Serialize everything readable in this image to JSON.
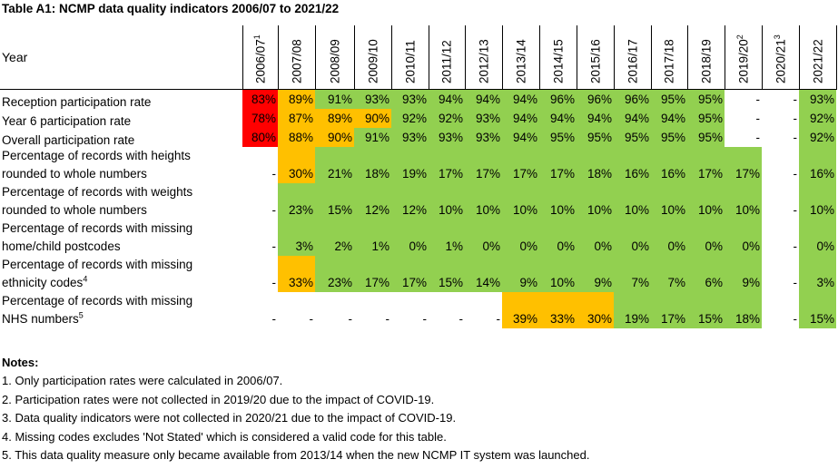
{
  "title": "Table A1: NCMP data quality indicators 2006/07 to 2021/22",
  "year_header": "Year",
  "years": [
    {
      "label": "2006/07",
      "sup": "1"
    },
    {
      "label": "2007/08",
      "sup": ""
    },
    {
      "label": "2008/09",
      "sup": ""
    },
    {
      "label": "2009/10",
      "sup": ""
    },
    {
      "label": "2010/11",
      "sup": ""
    },
    {
      "label": "2011/12",
      "sup": ""
    },
    {
      "label": "2012/13",
      "sup": ""
    },
    {
      "label": "2013/14",
      "sup": ""
    },
    {
      "label": "2014/15",
      "sup": ""
    },
    {
      "label": "2015/16",
      "sup": ""
    },
    {
      "label": "2016/17",
      "sup": ""
    },
    {
      "label": "2017/18",
      "sup": ""
    },
    {
      "label": "2018/19",
      "sup": ""
    },
    {
      "label": "2019/20",
      "sup": "2"
    },
    {
      "label": "2020/21",
      "sup": "3"
    },
    {
      "label": "2021/22",
      "sup": ""
    }
  ],
  "colors": {
    "red": "#ff0000",
    "amber": "#ffc000",
    "green": "#92d050"
  },
  "rows": [
    {
      "lines": [
        "Reception participation rate"
      ],
      "sup": "",
      "values": [
        "83%",
        "89%",
        "91%",
        "93%",
        "93%",
        "94%",
        "94%",
        "94%",
        "96%",
        "96%",
        "96%",
        "95%",
        "95%",
        "-",
        "-",
        "93%"
      ],
      "colors": [
        "red",
        "amber",
        "green",
        "green",
        "green",
        "green",
        "green",
        "green",
        "green",
        "green",
        "green",
        "green",
        "green",
        "",
        "",
        "green"
      ]
    },
    {
      "lines": [
        "Year 6 participation rate"
      ],
      "sup": "",
      "values": [
        "78%",
        "87%",
        "89%",
        "90%",
        "92%",
        "92%",
        "93%",
        "94%",
        "94%",
        "94%",
        "94%",
        "94%",
        "95%",
        "-",
        "-",
        "92%"
      ],
      "colors": [
        "red",
        "amber",
        "amber",
        "amber",
        "green",
        "green",
        "green",
        "green",
        "green",
        "green",
        "green",
        "green",
        "green",
        "",
        "",
        "green"
      ]
    },
    {
      "lines": [
        "Overall participation rate"
      ],
      "sup": "",
      "values": [
        "80%",
        "88%",
        "90%",
        "91%",
        "93%",
        "93%",
        "93%",
        "94%",
        "95%",
        "95%",
        "95%",
        "95%",
        "95%",
        "-",
        "-",
        "92%"
      ],
      "colors": [
        "red",
        "amber",
        "amber",
        "green",
        "green",
        "green",
        "green",
        "green",
        "green",
        "green",
        "green",
        "green",
        "green",
        "",
        "",
        "green"
      ]
    },
    {
      "lines": [
        "Percentage of records with heights",
        "rounded to whole numbers"
      ],
      "sup": "",
      "values": [
        "-",
        "30%",
        "21%",
        "18%",
        "19%",
        "17%",
        "17%",
        "17%",
        "17%",
        "18%",
        "16%",
        "16%",
        "17%",
        "17%",
        "-",
        "16%"
      ],
      "colors": [
        "",
        "amber",
        "green",
        "green",
        "green",
        "green",
        "green",
        "green",
        "green",
        "green",
        "green",
        "green",
        "green",
        "green",
        "",
        "green"
      ]
    },
    {
      "lines": [
        "Percentage of records with weights",
        "rounded to whole numbers"
      ],
      "sup": "",
      "values": [
        "-",
        "23%",
        "15%",
        "12%",
        "12%",
        "10%",
        "10%",
        "10%",
        "10%",
        "10%",
        "10%",
        "10%",
        "10%",
        "10%",
        "-",
        "10%"
      ],
      "colors": [
        "",
        "green",
        "green",
        "green",
        "green",
        "green",
        "green",
        "green",
        "green",
        "green",
        "green",
        "green",
        "green",
        "green",
        "",
        "green"
      ]
    },
    {
      "lines": [
        "Percentage of records with missing",
        "home/child postcodes"
      ],
      "sup": "",
      "values": [
        "-",
        "3%",
        "2%",
        "1%",
        "0%",
        "1%",
        "0%",
        "0%",
        "0%",
        "0%",
        "0%",
        "0%",
        "0%",
        "0%",
        "-",
        "0%"
      ],
      "colors": [
        "",
        "green",
        "green",
        "green",
        "green",
        "green",
        "green",
        "green",
        "green",
        "green",
        "green",
        "green",
        "green",
        "green",
        "",
        "green"
      ]
    },
    {
      "lines": [
        "Percentage of records with missing",
        "ethnicity codes"
      ],
      "sup": "4",
      "values": [
        "-",
        "33%",
        "23%",
        "17%",
        "17%",
        "15%",
        "14%",
        "9%",
        "10%",
        "9%",
        "7%",
        "7%",
        "6%",
        "9%",
        "-",
        "3%"
      ],
      "colors": [
        "",
        "amber",
        "green",
        "green",
        "green",
        "green",
        "green",
        "green",
        "green",
        "green",
        "green",
        "green",
        "green",
        "green",
        "",
        "green"
      ]
    },
    {
      "lines": [
        "Percentage of records with missing",
        "NHS numbers"
      ],
      "sup": "5",
      "values": [
        "-",
        "-",
        "-",
        "-",
        "-",
        "-",
        "-",
        "39%",
        "33%",
        "30%",
        "19%",
        "17%",
        "15%",
        "18%",
        "-",
        "15%"
      ],
      "colors": [
        "",
        "",
        "",
        "",
        "",
        "",
        "",
        "amber",
        "amber",
        "amber",
        "green",
        "green",
        "green",
        "green",
        "",
        "green"
      ]
    }
  ],
  "notes": {
    "heading": "Notes:",
    "items": [
      "1. Only participation rates were calculated in 2006/07.",
      "2. Participation rates were not collected in 2019/20 due to the impact of COVID-19.",
      "3. Data quality indicators were not collected in 2020/21 due to the impact of COVID-19.",
      "4. Missing codes excludes 'Not Stated' which is considered a valid code for this table.",
      "5. This data quality measure only became available from 2013/14 when the new NCMP IT system was launched."
    ]
  }
}
